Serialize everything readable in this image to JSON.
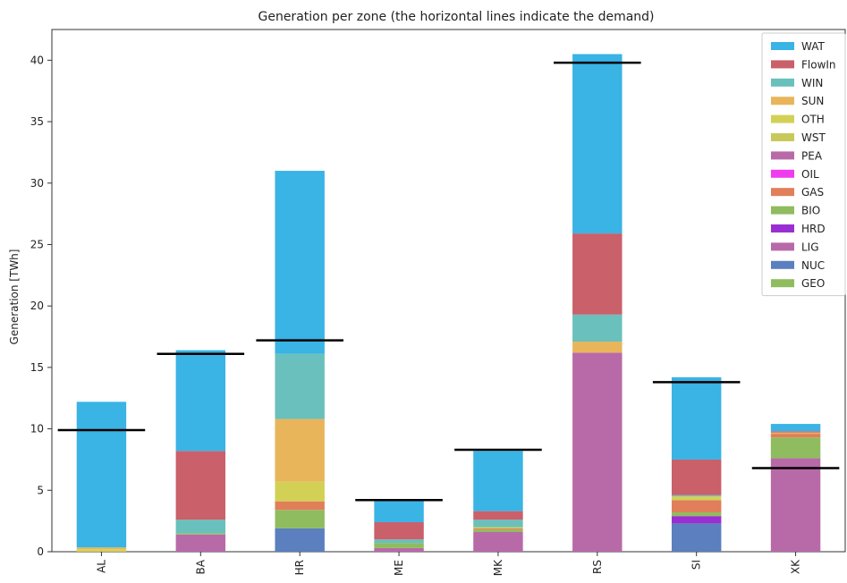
{
  "chart_data": {
    "type": "bar",
    "stacked": true,
    "title": "Generation per zone (the horizontal lines indicate the demand)",
    "xlabel": "",
    "ylabel": "Generation [TWh]",
    "ylim": [
      0,
      42.5
    ],
    "yticks": [
      0,
      5,
      10,
      15,
      20,
      25,
      30,
      35,
      40
    ],
    "grid": false,
    "legend_position": "top-right",
    "categories": [
      "AL",
      "BA",
      "HR",
      "ME",
      "MK",
      "RS",
      "SI",
      "XK"
    ],
    "demand": [
      9.9,
      16.1,
      17.2,
      4.2,
      8.3,
      39.8,
      13.8,
      6.8
    ],
    "series": [
      {
        "name": "GEO",
        "color": "#8fbc5e",
        "values": [
          0,
          0,
          0,
          0,
          0,
          0,
          0,
          0
        ]
      },
      {
        "name": "NUC",
        "color": "#5b7fbf",
        "values": [
          0,
          0,
          1.9,
          0,
          0,
          0,
          2.3,
          0
        ]
      },
      {
        "name": "LIG",
        "color": "#b86aa8",
        "values": [
          0,
          1.4,
          0,
          0.3,
          1.6,
          16.2,
          0,
          7.6
        ]
      },
      {
        "name": "HRD",
        "color": "#9a2fd1",
        "values": [
          0,
          0,
          0,
          0,
          0,
          0,
          0.6,
          0
        ]
      },
      {
        "name": "BIO",
        "color": "#8fbc5e",
        "values": [
          0,
          0.1,
          1.5,
          0.4,
          0.2,
          0,
          0.3,
          1.7
        ]
      },
      {
        "name": "GAS",
        "color": "#e07f5a",
        "values": [
          0,
          0,
          0.7,
          0,
          0.1,
          0,
          1.0,
          0.3
        ]
      },
      {
        "name": "OIL",
        "color": "#f03cf0",
        "values": [
          0,
          0,
          0,
          0,
          0,
          0,
          0,
          0
        ]
      },
      {
        "name": "PEA",
        "color": "#b86aa8",
        "values": [
          0,
          0,
          0,
          0,
          0,
          0,
          0,
          0
        ]
      },
      {
        "name": "WST",
        "color": "#c8c95a",
        "values": [
          0,
          0,
          0,
          0,
          0,
          0,
          0,
          0
        ]
      },
      {
        "name": "OTH",
        "color": "#d3d155",
        "values": [
          0.2,
          0,
          1.6,
          0,
          0.1,
          0,
          0.3,
          0
        ]
      },
      {
        "name": "SUN",
        "color": "#e9b55a",
        "values": [
          0.15,
          0,
          5.1,
          0,
          0,
          0.9,
          0,
          0.1
        ]
      },
      {
        "name": "WIN",
        "color": "#69c0bc",
        "values": [
          0,
          1.1,
          5.3,
          0.3,
          0.6,
          2.2,
          0.1,
          0
        ]
      },
      {
        "name": "FlowIn",
        "color": "#c9606a",
        "values": [
          0,
          5.6,
          0,
          1.4,
          0.7,
          6.6,
          2.9,
          0.1
        ]
      },
      {
        "name": "WAT",
        "color": "#3ab3e5",
        "values": [
          11.85,
          8.2,
          14.9,
          1.8,
          4.9,
          14.6,
          6.7,
          0.6
        ]
      }
    ]
  }
}
